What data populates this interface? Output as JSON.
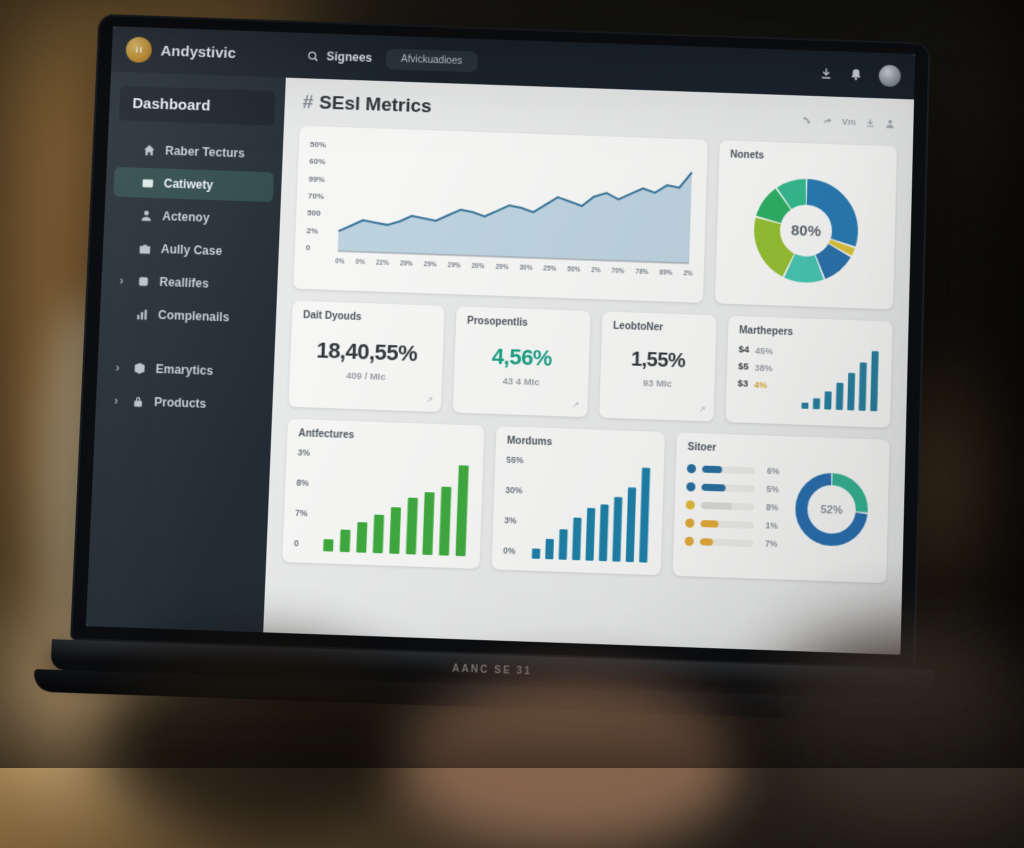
{
  "topnav": {
    "brand": "Andystivic",
    "search_label": "Signees",
    "context_pill": "Afvickuadioes",
    "right_icons": [
      "download",
      "bell",
      "avatar"
    ]
  },
  "sidebar": {
    "title": "Dashboard",
    "items": [
      {
        "label": "Raber Tecturs",
        "icon": "home",
        "selected": false,
        "chevron": false
      },
      {
        "label": "Catiwety",
        "icon": "card",
        "selected": true,
        "chevron": false
      },
      {
        "label": "Actenoy",
        "icon": "person",
        "selected": false,
        "chevron": false
      },
      {
        "label": "Aully Case",
        "icon": "case",
        "selected": false,
        "chevron": false
      },
      {
        "label": "Reallifes",
        "icon": "panel",
        "selected": false,
        "chevron": true
      },
      {
        "label": "Complenails",
        "icon": "chart",
        "selected": false,
        "chevron": false
      },
      {
        "label": "Emarytics",
        "icon": "cube",
        "selected": false,
        "chevron": true,
        "gap": true
      },
      {
        "label": "Products",
        "icon": "lock",
        "selected": false,
        "chevron": true
      }
    ]
  },
  "header": {
    "hash": "#",
    "title": "SEsl Metrics",
    "vm_label": "Vm",
    "tools": [
      "phone",
      "share",
      "vm",
      "download",
      "user"
    ]
  },
  "stats": [
    {
      "label": "Dait Dyouds",
      "value": "18,40,55%",
      "sub": "409 / MIc",
      "value_color": "#33393d"
    },
    {
      "label": "Prosopentlis",
      "value": "4,56%",
      "sub": "43 4 MIc",
      "value_color": "#1d9e80"
    },
    {
      "label": "LeobtoNer",
      "value": "1,55%",
      "sub": "93 MIc",
      "value_color": "#33393d"
    }
  ],
  "chart_data": [
    {
      "id": "traffic_area",
      "type": "area",
      "title": "",
      "y_ticks": [
        "50%",
        "60%",
        "99%",
        "70%",
        "500",
        "2%",
        "0"
      ],
      "x_ticks": [
        "0%",
        "0%",
        "22%",
        "29%",
        "29%",
        "29%",
        "20%",
        "29%",
        "30%",
        "25%",
        "50%",
        "2%",
        "70%",
        "78%",
        "89%",
        "2%"
      ],
      "values": [
        9,
        12,
        15,
        14,
        13,
        15,
        18,
        17,
        16,
        19,
        22,
        21,
        19,
        22,
        25,
        24,
        22,
        26,
        30,
        28,
        26,
        31,
        33,
        30,
        33,
        36,
        34,
        38,
        37,
        45
      ],
      "ylim": [
        0,
        50
      ],
      "line_color": "#3a7498",
      "fill_color": "#b3cbda"
    },
    {
      "id": "nonets_donut",
      "type": "pie",
      "title": "Nonets",
      "center_label": "80%",
      "segments": [
        {
          "value": 30,
          "color": "#2a7ab2"
        },
        {
          "value": 3,
          "color": "#d9c33c"
        },
        {
          "value": 11,
          "color": "#2a72ab"
        },
        {
          "value": 13,
          "color": "#49c4b2"
        },
        {
          "value": 22,
          "color": "#94be33"
        },
        {
          "value": 11,
          "color": "#2fae64"
        },
        {
          "value": 10,
          "color": "#35b98e"
        }
      ]
    },
    {
      "id": "marthepers_bars",
      "type": "bar",
      "title": "Marthepers",
      "values": [
        10,
        18,
        30,
        45,
        62,
        80,
        100
      ],
      "bar_color": "#2a7f9e",
      "rows": [
        {
          "label": "$4",
          "value": "45%"
        },
        {
          "label": "$5",
          "value": "38%"
        },
        {
          "label": "$3",
          "value": "4%",
          "highlight": "#d9a83a"
        }
      ]
    },
    {
      "id": "antfectures_bars",
      "type": "bar",
      "title": "Antfectures",
      "y_ticks": [
        "3%",
        "8%",
        "7%",
        "0"
      ],
      "values": [
        12,
        22,
        30,
        38,
        46,
        56,
        62,
        68,
        90
      ],
      "bar_color": "#3fa83f"
    },
    {
      "id": "mordums_bars",
      "type": "bar",
      "title": "Mordums",
      "y_ticks": [
        "55%",
        "30%",
        "3%",
        "0%"
      ],
      "values": [
        10,
        20,
        30,
        42,
        52,
        56,
        64,
        74,
        94
      ],
      "bar_color": "#1f7fa6"
    },
    {
      "id": "sitoer_progress",
      "type": "bar",
      "title": "Sitoer",
      "rows": [
        {
          "dot": "#2a6f9e",
          "fill": "#2a6f9e",
          "pct": 38,
          "label": "6%"
        },
        {
          "dot": "#2a6f9e",
          "fill": "#2a6f9e",
          "pct": 45,
          "label": "5%"
        },
        {
          "dot": "#dfb93a",
          "fill": "#d8d8d3",
          "pct": 58,
          "label": "8%"
        },
        {
          "dot": "#e0a83a",
          "fill": "#e0a83a",
          "pct": 34,
          "label": "1%"
        },
        {
          "dot": "#e0a83a",
          "fill": "#e0a83a",
          "pct": 24,
          "label": "7%"
        }
      ],
      "donut": {
        "center_label": "52%",
        "segments": [
          {
            "value": 26,
            "color": "#36b292"
          },
          {
            "value": 72,
            "color": "#2a6fae"
          }
        ]
      }
    }
  ],
  "laptop": {
    "brand_label": "AANC SE 31"
  }
}
